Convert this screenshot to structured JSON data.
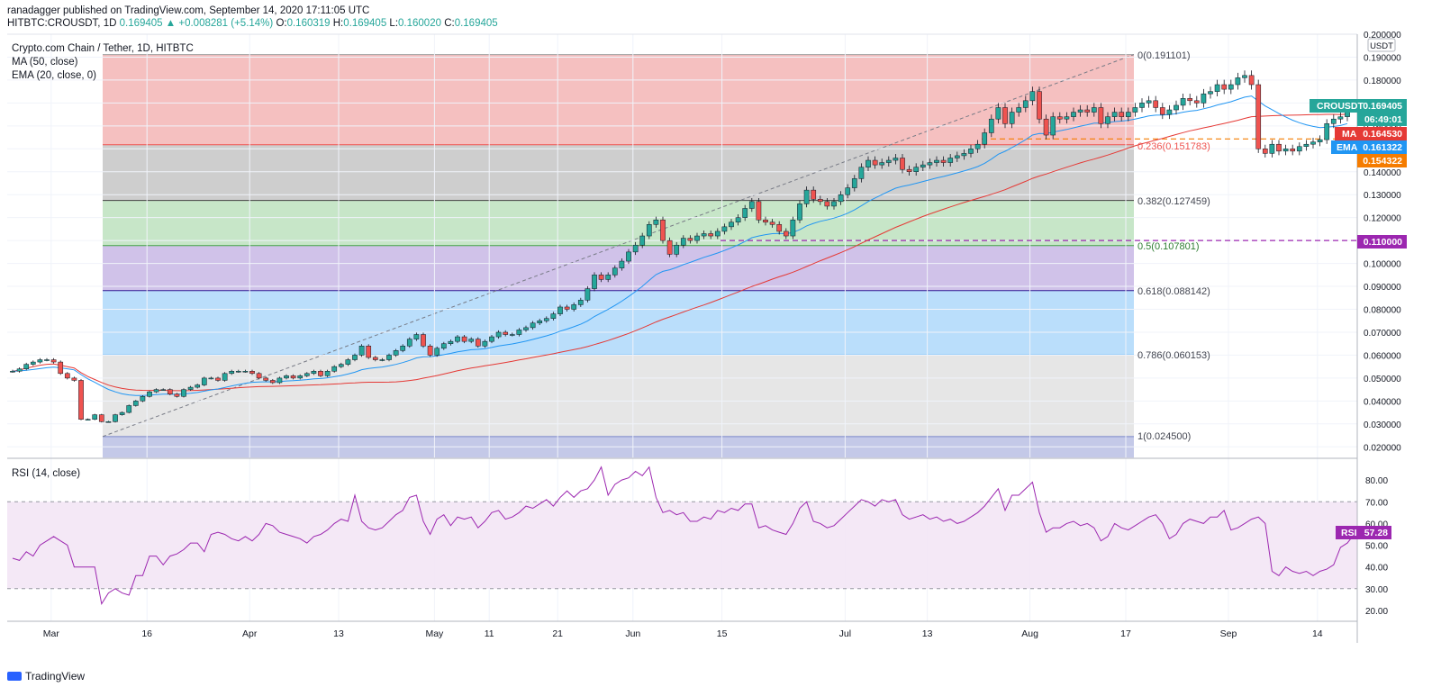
{
  "header": {
    "published_line": "ranadagger published on TradingView.com, September 14, 2020 17:11:05 UTC",
    "symbol": "HITBTC:CROUSDT, 1D",
    "price": "0.169405",
    "change": "+0.008281 (+5.14%)",
    "open_label": "O:",
    "open": "0.160319",
    "high_label": "H:",
    "high": "0.169405",
    "low_label": "L:",
    "low": "0.160020",
    "close_label": "C:",
    "close": "0.169405"
  },
  "legend": {
    "title": "Crypto.com Chain / Tether, 1D, HITBTC",
    "ma": "MA (50, close)",
    "ema": "EMA (20, close, 0)",
    "rsi": "RSI (14, close)"
  },
  "price_axis": {
    "currency": "USDT",
    "ticks": [
      "0.200000",
      "0.190000",
      "0.180000",
      "0.170000",
      "0.160000",
      "0.150000",
      "0.140000",
      "0.130000",
      "0.120000",
      "0.110000",
      "0.100000",
      "0.090000",
      "0.080000",
      "0.070000",
      "0.060000",
      "0.050000",
      "0.040000",
      "0.030000",
      "0.020000"
    ]
  },
  "rsi_axis": {
    "ticks": [
      "80.00",
      "70.00",
      "60.00",
      "50.00",
      "40.00",
      "30.00",
      "20.00"
    ]
  },
  "time_axis": {
    "ticks": [
      "Mar",
      "16",
      "Apr",
      "13",
      "May",
      "11",
      "21",
      "Jun",
      "15",
      "Jul",
      "13",
      "Aug",
      "17",
      "Sep",
      "14"
    ]
  },
  "badges": {
    "symbol_label": "CROUSDT",
    "symbol_value": "0.169405",
    "countdown": "06:49:01",
    "ma_label": "MA",
    "ma_value": "0.164530",
    "ema_label": "EMA",
    "ema_value": "0.161322",
    "orange_value": "0.154322",
    "level_value": "0.110000",
    "rsi_label": "RSI",
    "rsi_value": "57.28"
  },
  "fib_labels": {
    "f0": "0(0.191101)",
    "f236": "0.236(0.151783)",
    "f382": "0.382(0.127459)",
    "f5": "0.5(0.107801)",
    "f618": "0.618(0.088142)",
    "f786": "0.786(0.060153)",
    "f1": "1(0.024500)"
  },
  "colors": {
    "up": "#26a69a",
    "down": "#ef5350",
    "ma": "#e53935",
    "ema": "#2196f3",
    "rsi": "#9c27b0",
    "orange": "#f57c00",
    "purple_level": "#9c27b0",
    "countdown_bg": "#26a69a"
  },
  "footer": {
    "brand": "TradingView"
  },
  "chart_data": {
    "type": "candlestick",
    "title": "Crypto.com Chain / Tether, 1D, HITBTC",
    "ylim": [
      0.015,
      0.2
    ],
    "rsi_ylim": [
      15,
      90
    ],
    "levels": {
      "fib_0": 0.191101,
      "fib_0_236": 0.151783,
      "fib_0_382": 0.127459,
      "fib_0_5": 0.107801,
      "fib_0_618": 0.088142,
      "fib_0_786": 0.060153,
      "fib_1": 0.0245,
      "horizontal_support": 0.11,
      "orange_level": 0.154322,
      "rsi_upper": 70,
      "rsi_lower": 30
    },
    "close": [
      0.053,
      0.054,
      0.056,
      0.057,
      0.058,
      0.058,
      0.057,
      0.052,
      0.05,
      0.049,
      0.032,
      0.032,
      0.034,
      0.031,
      0.031,
      0.034,
      0.035,
      0.038,
      0.04,
      0.042,
      0.044,
      0.045,
      0.045,
      0.043,
      0.042,
      0.045,
      0.046,
      0.047,
      0.05,
      0.05,
      0.049,
      0.052,
      0.053,
      0.053,
      0.053,
      0.052,
      0.05,
      0.049,
      0.048,
      0.05,
      0.051,
      0.05,
      0.051,
      0.052,
      0.053,
      0.051,
      0.053,
      0.055,
      0.056,
      0.058,
      0.06,
      0.064,
      0.059,
      0.058,
      0.058,
      0.06,
      0.062,
      0.064,
      0.067,
      0.069,
      0.064,
      0.06,
      0.063,
      0.065,
      0.066,
      0.068,
      0.066,
      0.067,
      0.064,
      0.066,
      0.068,
      0.07,
      0.069,
      0.069,
      0.071,
      0.072,
      0.074,
      0.075,
      0.076,
      0.078,
      0.081,
      0.08,
      0.082,
      0.084,
      0.089,
      0.095,
      0.093,
      0.095,
      0.098,
      0.101,
      0.105,
      0.108,
      0.112,
      0.117,
      0.119,
      0.11,
      0.104,
      0.108,
      0.111,
      0.11,
      0.112,
      0.113,
      0.112,
      0.114,
      0.116,
      0.118,
      0.12,
      0.124,
      0.127,
      0.119,
      0.118,
      0.117,
      0.114,
      0.112,
      0.119,
      0.126,
      0.132,
      0.128,
      0.127,
      0.125,
      0.127,
      0.13,
      0.133,
      0.137,
      0.142,
      0.145,
      0.143,
      0.144,
      0.145,
      0.146,
      0.141,
      0.14,
      0.142,
      0.143,
      0.144,
      0.145,
      0.144,
      0.146,
      0.147,
      0.148,
      0.15,
      0.152,
      0.157,
      0.163,
      0.168,
      0.161,
      0.166,
      0.168,
      0.171,
      0.175,
      0.163,
      0.156,
      0.164,
      0.163,
      0.164,
      0.166,
      0.167,
      0.166,
      0.168,
      0.161,
      0.164,
      0.166,
      0.164,
      0.166,
      0.168,
      0.17,
      0.171,
      0.168,
      0.165,
      0.167,
      0.169,
      0.172,
      0.171,
      0.17,
      0.174,
      0.175,
      0.178,
      0.176,
      0.178,
      0.181,
      0.182,
      0.178,
      0.15,
      0.148,
      0.152,
      0.149,
      0.15,
      0.149,
      0.151,
      0.152,
      0.153,
      0.154,
      0.161,
      0.163,
      0.164,
      0.169
    ],
    "rsi": [
      44,
      43,
      47,
      45,
      50,
      52,
      54,
      52,
      50,
      40,
      40,
      40,
      40,
      23,
      28,
      30,
      28,
      27,
      36,
      36,
      45,
      45,
      41,
      45,
      46,
      48,
      51,
      51,
      47,
      55,
      56,
      55,
      53,
      52,
      54,
      52,
      55,
      60,
      59,
      56,
      55,
      54,
      53,
      51,
      54,
      55,
      57,
      60,
      62,
      61,
      73,
      61,
      58,
      57,
      58,
      61,
      64,
      66,
      72,
      73,
      61,
      55,
      62,
      64,
      59,
      63,
      62,
      63,
      58,
      61,
      65,
      66,
      62,
      63,
      65,
      68,
      67,
      69,
      71,
      68,
      72,
      75,
      72,
      75,
      76,
      80,
      86,
      73,
      78,
      80,
      81,
      84,
      82,
      86,
      72,
      65,
      66,
      64,
      65,
      61,
      61,
      63,
      62,
      66,
      65,
      67,
      66,
      69,
      69,
      58,
      59,
      57,
      56,
      55,
      60,
      67,
      70,
      61,
      60,
      58,
      59,
      62,
      65,
      68,
      71,
      70,
      68,
      71,
      70,
      71,
      64,
      62,
      63,
      64,
      62,
      63,
      61,
      62,
      60,
      61,
      63,
      65,
      68,
      72,
      76,
      66,
      73,
      73,
      76,
      79,
      65,
      56,
      58,
      58,
      60,
      61,
      59,
      60,
      58,
      52,
      54,
      60,
      58,
      57,
      59,
      61,
      63,
      64,
      60,
      53,
      55,
      60,
      62,
      61,
      60,
      63,
      63,
      66,
      57,
      58,
      60,
      62,
      63,
      60,
      38,
      36,
      40,
      38,
      37,
      38,
      36,
      38,
      39,
      41,
      49,
      51,
      55,
      57
    ]
  }
}
